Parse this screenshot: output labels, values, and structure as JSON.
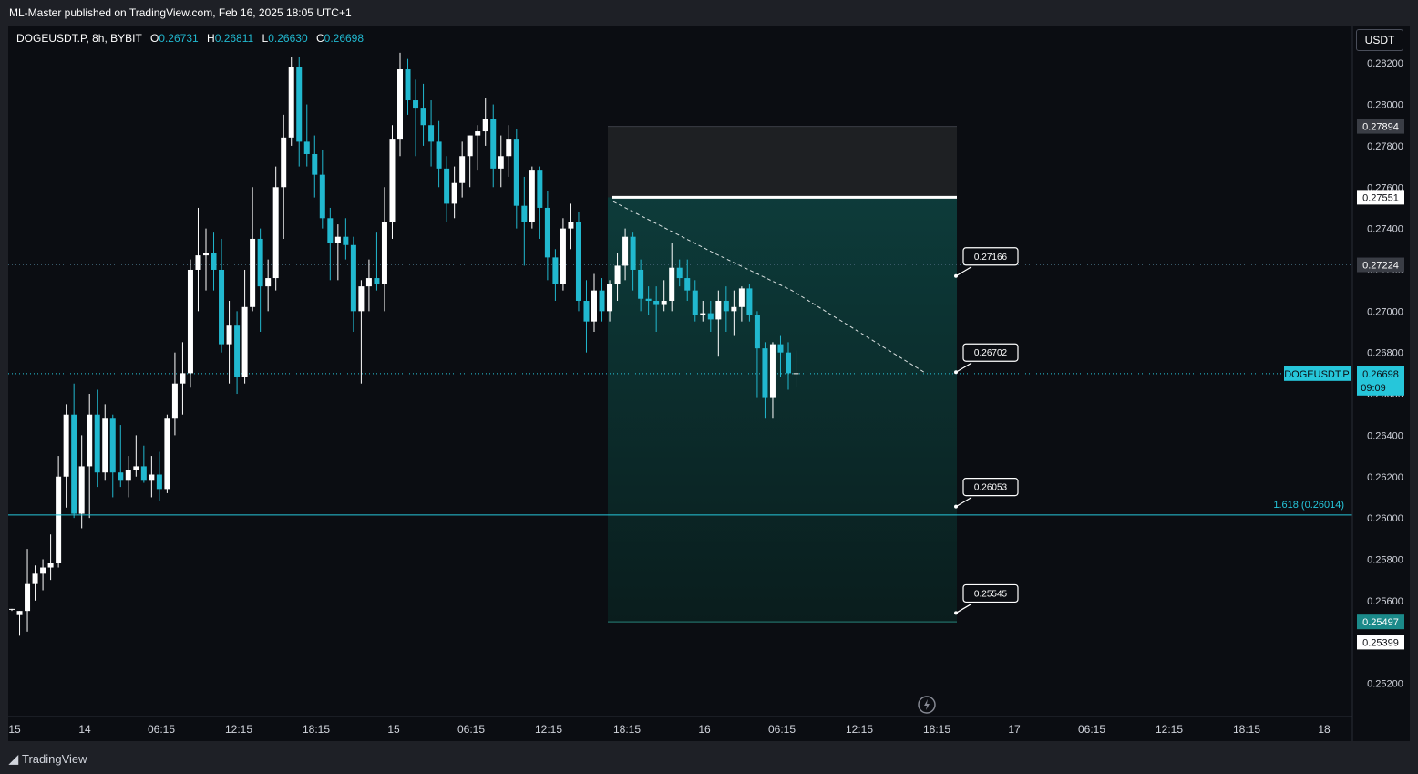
{
  "header": {
    "published_text": "ML-Master published on TradingView.com, Feb 16, 2025 18:05 UTC+1"
  },
  "legend": {
    "symbol": "DOGEUSDT.P, 8h, BYBIT",
    "open_key": "O",
    "open": "0.26731",
    "high_key": "H",
    "high": "0.26811",
    "low_key": "L",
    "low": "0.26630",
    "close_key": "C",
    "close": "0.26698"
  },
  "currency_button": "USDT",
  "footer": {
    "brand": "TradingView",
    "icon": "tradingview-logo-icon"
  },
  "colors": {
    "bg": "#0b0d12",
    "bull": "#ffffff",
    "bear": "#21b8cf",
    "accent": "#26c6da",
    "profit_zone": "#0d3b3a",
    "stop_zone": "#202226"
  },
  "snapshot_icon": "lightning-icon",
  "chart_data": {
    "type": "candlestick",
    "symbol": "DOGEUSDT.P",
    "timeframe": "8h",
    "exchange": "BYBIT",
    "ylim": [
      0.2514,
      0.2824
    ],
    "y_ticks": [
      "0.28200",
      "0.28000",
      "0.27800",
      "0.27600",
      "0.27400",
      "0.27200",
      "0.27000",
      "0.26800",
      "0.26600",
      "0.26400",
      "0.26200",
      "0.26000",
      "0.25800",
      "0.25600",
      "0.25400",
      "0.25200"
    ],
    "x_ticks": [
      "15",
      "14",
      "06:15",
      "12:15",
      "18:15",
      "15",
      "06:15",
      "12:15",
      "18:15",
      "16",
      "06:15",
      "12:15",
      "18:15",
      "17",
      "06:15",
      "12:15",
      "18:15",
      "18"
    ],
    "price_labels": [
      {
        "text": "0.27894",
        "price": 0.27894,
        "style": "gray"
      },
      {
        "text": "0.27551",
        "price": 0.27551,
        "style": "white"
      },
      {
        "text": "0.27224",
        "price": 0.27224,
        "style": "gray"
      },
      {
        "text": "0.25497",
        "price": 0.25497,
        "style": "teal"
      },
      {
        "text": "0.25399",
        "price": 0.25399,
        "style": "white"
      }
    ],
    "current_price": {
      "symbol": "DOGEUSDT.P",
      "price_text": "0.26698",
      "countdown": "09:09",
      "price": 0.26698
    },
    "fib_line": {
      "label": "1.618 (0.26014)",
      "price": 0.26014
    },
    "targets": [
      {
        "label": "0.27166",
        "price": 0.2717
      },
      {
        "label": "0.26702",
        "price": 0.26705
      },
      {
        "label": "0.26053",
        "price": 0.26055
      },
      {
        "label": "0.25545",
        "price": 0.2554
      }
    ],
    "position": {
      "entry": 0.27551,
      "stop": 0.27894,
      "target": 0.25497,
      "direction": "short"
    },
    "candles": [
      [
        0.2556,
        0.2556,
        0.2555,
        0.2556
      ],
      [
        0.2553,
        0.2555,
        0.2543,
        0.2555
      ],
      [
        0.2555,
        0.2585,
        0.2545,
        0.2568
      ],
      [
        0.2568,
        0.2577,
        0.256,
        0.2573
      ],
      [
        0.2573,
        0.258,
        0.2565,
        0.2576
      ],
      [
        0.2576,
        0.2592,
        0.257,
        0.2578
      ],
      [
        0.2578,
        0.263,
        0.2576,
        0.262
      ],
      [
        0.262,
        0.2655,
        0.2605,
        0.265
      ],
      [
        0.265,
        0.2665,
        0.26,
        0.2602
      ],
      [
        0.2602,
        0.264,
        0.2595,
        0.2625
      ],
      [
        0.2625,
        0.266,
        0.26,
        0.265
      ],
      [
        0.265,
        0.2662,
        0.2615,
        0.2622
      ],
      [
        0.2622,
        0.2655,
        0.2618,
        0.2648
      ],
      [
        0.2648,
        0.265,
        0.261,
        0.2622
      ],
      [
        0.2622,
        0.2645,
        0.2615,
        0.2618
      ],
      [
        0.2618,
        0.263,
        0.261,
        0.2623
      ],
      [
        0.2623,
        0.264,
        0.262,
        0.2625
      ],
      [
        0.2625,
        0.2635,
        0.2617,
        0.2618
      ],
      [
        0.2618,
        0.263,
        0.261,
        0.2621
      ],
      [
        0.2621,
        0.2632,
        0.2608,
        0.2614
      ],
      [
        0.2614,
        0.265,
        0.2612,
        0.2648
      ],
      [
        0.2648,
        0.268,
        0.264,
        0.2665
      ],
      [
        0.2665,
        0.2685,
        0.265,
        0.267
      ],
      [
        0.267,
        0.2725,
        0.2663,
        0.272
      ],
      [
        0.272,
        0.275,
        0.27,
        0.2727
      ],
      [
        0.2727,
        0.274,
        0.271,
        0.2728
      ],
      [
        0.2728,
        0.2738,
        0.271,
        0.272
      ],
      [
        0.272,
        0.2735,
        0.268,
        0.2684
      ],
      [
        0.2684,
        0.2705,
        0.2665,
        0.2693
      ],
      [
        0.2693,
        0.27,
        0.266,
        0.2668
      ],
      [
        0.2668,
        0.272,
        0.2665,
        0.2702
      ],
      [
        0.2702,
        0.276,
        0.27,
        0.2735
      ],
      [
        0.2735,
        0.274,
        0.269,
        0.2712
      ],
      [
        0.2712,
        0.2725,
        0.27,
        0.2716
      ],
      [
        0.2716,
        0.277,
        0.271,
        0.276
      ],
      [
        0.276,
        0.2795,
        0.2735,
        0.2784
      ],
      [
        0.2784,
        0.2823,
        0.278,
        0.2818
      ],
      [
        0.2818,
        0.2823,
        0.277,
        0.2782
      ],
      [
        0.2782,
        0.28,
        0.277,
        0.2776
      ],
      [
        0.2776,
        0.2785,
        0.2755,
        0.2766
      ],
      [
        0.2766,
        0.2778,
        0.274,
        0.2745
      ],
      [
        0.2745,
        0.275,
        0.2715,
        0.2733
      ],
      [
        0.2733,
        0.2742,
        0.2715,
        0.2736
      ],
      [
        0.2736,
        0.2745,
        0.2725,
        0.2732
      ],
      [
        0.2732,
        0.2736,
        0.269,
        0.27
      ],
      [
        0.27,
        0.2715,
        0.2665,
        0.2712
      ],
      [
        0.2712,
        0.2725,
        0.27,
        0.2716
      ],
      [
        0.2716,
        0.2738,
        0.271,
        0.2713
      ],
      [
        0.2713,
        0.276,
        0.27,
        0.2743
      ],
      [
        0.2743,
        0.279,
        0.2735,
        0.2783
      ],
      [
        0.2783,
        0.2825,
        0.2775,
        0.2817
      ],
      [
        0.2817,
        0.2822,
        0.2795,
        0.2802
      ],
      [
        0.2802,
        0.2812,
        0.2775,
        0.2798
      ],
      [
        0.2798,
        0.281,
        0.278,
        0.279
      ],
      [
        0.279,
        0.2802,
        0.277,
        0.2782
      ],
      [
        0.2782,
        0.2792,
        0.276,
        0.2769
      ],
      [
        0.2769,
        0.2775,
        0.2743,
        0.2752
      ],
      [
        0.2752,
        0.277,
        0.2745,
        0.2762
      ],
      [
        0.2762,
        0.2782,
        0.2755,
        0.2775
      ],
      [
        0.2775,
        0.2785,
        0.276,
        0.2785
      ],
      [
        0.2785,
        0.279,
        0.2768,
        0.2787
      ],
      [
        0.2787,
        0.2803,
        0.278,
        0.2793
      ],
      [
        0.2793,
        0.28,
        0.276,
        0.2769
      ],
      [
        0.2769,
        0.2785,
        0.276,
        0.2775
      ],
      [
        0.2775,
        0.279,
        0.2765,
        0.2783
      ],
      [
        0.2783,
        0.2788,
        0.274,
        0.2751
      ],
      [
        0.2751,
        0.2765,
        0.2722,
        0.2743
      ],
      [
        0.2743,
        0.277,
        0.274,
        0.2768
      ],
      [
        0.2768,
        0.277,
        0.2735,
        0.275
      ],
      [
        0.275,
        0.2758,
        0.2715,
        0.2726
      ],
      [
        0.2726,
        0.273,
        0.2705,
        0.2713
      ],
      [
        0.2713,
        0.2745,
        0.271,
        0.274
      ],
      [
        0.274,
        0.2752,
        0.273,
        0.2743
      ],
      [
        0.2743,
        0.2748,
        0.27,
        0.2705
      ],
      [
        0.2705,
        0.2715,
        0.268,
        0.2695
      ],
      [
        0.2695,
        0.2718,
        0.269,
        0.271
      ],
      [
        0.271,
        0.2716,
        0.2695,
        0.27
      ],
      [
        0.27,
        0.2715,
        0.2695,
        0.2713
      ],
      [
        0.2713,
        0.2728,
        0.2705,
        0.2722
      ],
      [
        0.2722,
        0.274,
        0.2715,
        0.2736
      ],
      [
        0.2736,
        0.2738,
        0.271,
        0.272
      ],
      [
        0.272,
        0.2725,
        0.27,
        0.2706
      ],
      [
        0.2706,
        0.2712,
        0.2698,
        0.2705
      ],
      [
        0.2705,
        0.2712,
        0.269,
        0.2703
      ],
      [
        0.2703,
        0.2715,
        0.27,
        0.2705
      ],
      [
        0.2705,
        0.2733,
        0.27,
        0.2721
      ],
      [
        0.2721,
        0.2725,
        0.2712,
        0.2716
      ],
      [
        0.2716,
        0.2725,
        0.2705,
        0.271
      ],
      [
        0.271,
        0.2715,
        0.2695,
        0.2698
      ],
      [
        0.2698,
        0.2705,
        0.2695,
        0.2699
      ],
      [
        0.2699,
        0.2705,
        0.269,
        0.2696
      ],
      [
        0.2696,
        0.271,
        0.2678,
        0.2705
      ],
      [
        0.2705,
        0.2712,
        0.269,
        0.27
      ],
      [
        0.27,
        0.271,
        0.2688,
        0.2702
      ],
      [
        0.2702,
        0.2712,
        0.2695,
        0.2711
      ],
      [
        0.2711,
        0.2713,
        0.2695,
        0.2698
      ],
      [
        0.2698,
        0.27,
        0.2658,
        0.2682
      ],
      [
        0.2682,
        0.2685,
        0.2648,
        0.2658
      ],
      [
        0.2658,
        0.2685,
        0.2648,
        0.2684
      ],
      [
        0.2684,
        0.2688,
        0.2668,
        0.268
      ],
      [
        0.268,
        0.2685,
        0.2662,
        0.267
      ],
      [
        0.267,
        0.2681,
        0.2663,
        0.267
      ]
    ]
  }
}
